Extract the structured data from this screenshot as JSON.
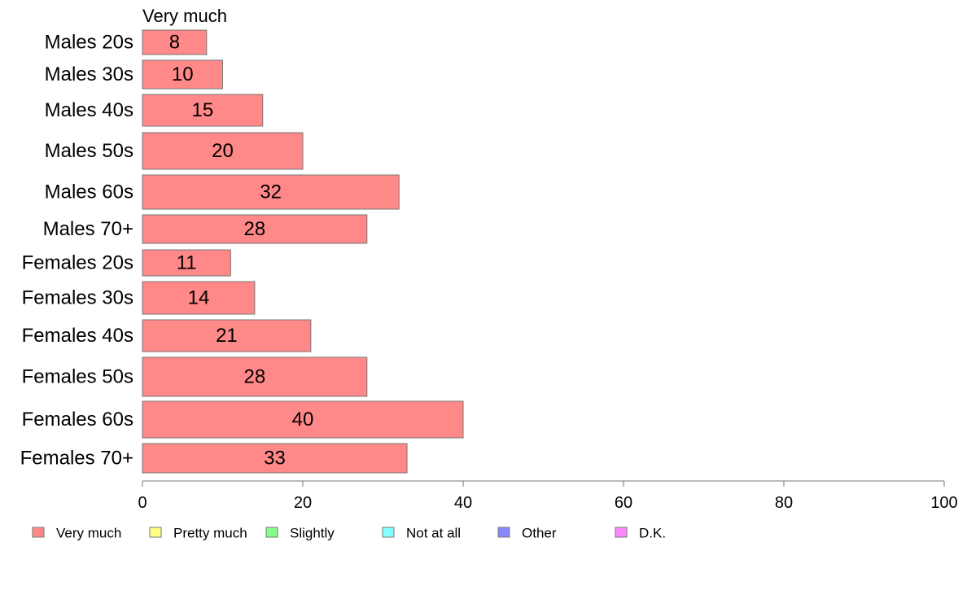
{
  "chart_data": {
    "type": "bar",
    "orientation": "horizontal",
    "panel_title": "Very much",
    "categories": [
      "Males 20s",
      "Males 30s",
      "Males 40s",
      "Males 50s",
      "Males 60s",
      "Males 70+",
      "Females 20s",
      "Females 30s",
      "Females 40s",
      "Females 50s",
      "Females 60s",
      "Females 70+"
    ],
    "values": [
      8,
      10,
      15,
      20,
      32,
      28,
      11,
      14,
      21,
      28,
      40,
      33
    ],
    "value_labels": [
      "8",
      "10",
      "15",
      "20",
      "32",
      "28",
      "11",
      "14",
      "21",
      "28",
      "40",
      "33"
    ],
    "xlim": [
      0,
      100
    ],
    "xticks": [
      0,
      20,
      40,
      60,
      80,
      100
    ],
    "xtick_labels": [
      "0",
      "20",
      "40",
      "60",
      "80",
      "100"
    ],
    "grid": false,
    "bar_color": "#ff8888",
    "legend": {
      "position": "bottom",
      "entries": [
        {
          "label": "Very much",
          "color": "#ff8888"
        },
        {
          "label": "Pretty much",
          "color": "#ffff88"
        },
        {
          "label": "Slightly",
          "color": "#88ff88"
        },
        {
          "label": "Not at all",
          "color": "#88ffff"
        },
        {
          "label": "Other",
          "color": "#8888ff"
        },
        {
          "label": "D.K.",
          "color": "#ff88ff"
        }
      ]
    }
  }
}
